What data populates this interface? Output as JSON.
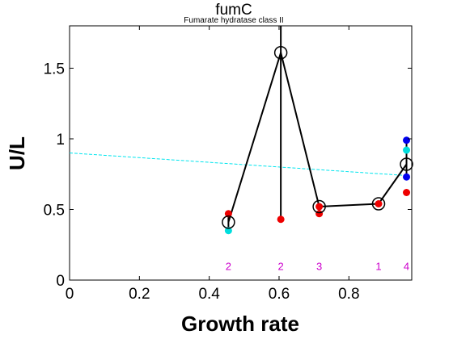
{
  "chart_data": {
    "type": "scatter",
    "title": "fumC",
    "subtitle": "Fumarate hydratase class II",
    "xlabel": "Growth rate",
    "ylabel": "U/L",
    "xlim": [
      0,
      0.98
    ],
    "ylim": [
      0,
      1.8
    ],
    "xticks": [
      "0",
      "0.2",
      "0.4",
      "0.6",
      "0.8"
    ],
    "xtick_values": [
      0,
      0.2,
      0.4,
      0.6,
      0.8
    ],
    "yticks": [
      "0",
      "0.5",
      "1",
      "1.5"
    ],
    "ytick_values": [
      0,
      0.5,
      1,
      1.5
    ],
    "grid": false,
    "colors": {
      "mean_line": "#000000",
      "trend_line": "#00e5ee",
      "red": "#ee0000",
      "cyan": "#00dddd",
      "blue": "#0000ee",
      "count": "#cc00cc"
    },
    "mean_series": {
      "x": [
        0.455,
        0.605,
        0.715,
        0.885,
        0.965
      ],
      "y": [
        0.41,
        1.61,
        0.52,
        0.54,
        0.82
      ]
    },
    "error_bars": [
      {
        "x": 0.455,
        "low": 0.35,
        "high": 0.47
      },
      {
        "x": 0.605,
        "low": 0.43,
        "high": 1.8
      },
      {
        "x": 0.715,
        "low": 0.47,
        "high": 0.53
      },
      {
        "x": 0.885,
        "low": 0.53,
        "high": 0.55
      },
      {
        "x": 0.965,
        "low": 0.73,
        "high": 0.99
      }
    ],
    "points": [
      {
        "x": 0.455,
        "y": 0.47,
        "color": "red"
      },
      {
        "x": 0.455,
        "y": 0.35,
        "color": "cyan"
      },
      {
        "x": 0.605,
        "y": 0.43,
        "color": "red"
      },
      {
        "x": 0.715,
        "y": 0.47,
        "color": "red"
      },
      {
        "x": 0.715,
        "y": 0.52,
        "color": "red"
      },
      {
        "x": 0.885,
        "y": 0.54,
        "color": "red"
      },
      {
        "x": 0.965,
        "y": 0.99,
        "color": "blue"
      },
      {
        "x": 0.965,
        "y": 0.92,
        "color": "cyan"
      },
      {
        "x": 0.965,
        "y": 0.73,
        "color": "blue"
      },
      {
        "x": 0.965,
        "y": 0.62,
        "color": "red"
      }
    ],
    "trend_line": {
      "x": [
        0,
        0.965
      ],
      "y": [
        0.9,
        0.74
      ]
    },
    "counts": [
      {
        "x": 0.455,
        "label": "2"
      },
      {
        "x": 0.605,
        "label": "2"
      },
      {
        "x": 0.715,
        "label": "3"
      },
      {
        "x": 0.885,
        "label": "1"
      },
      {
        "x": 0.965,
        "label": "4"
      }
    ],
    "count_label_y": 0.1
  }
}
